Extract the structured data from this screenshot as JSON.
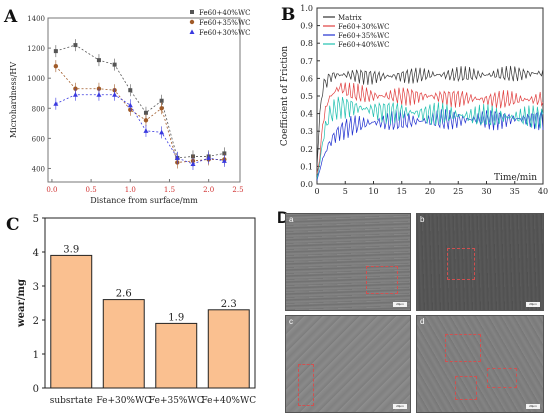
{
  "panels": {
    "A": "A",
    "B": "B",
    "C": "C",
    "D": "D"
  },
  "charts": [
    {
      "id": "A",
      "type": "line",
      "ylabel": "Microhardness/HV",
      "xlabel": "Distance from surface/mm",
      "xlim": [
        -0.05,
        2.4
      ],
      "ylim": [
        310,
        1400
      ],
      "xticks": [
        "0.0",
        "0.5",
        "1.0",
        "1.5",
        "2.0",
        "2.5"
      ],
      "xtick_values": [
        0,
        0.5,
        1.0,
        1.5,
        2.0,
        2.5
      ],
      "yticks": [
        "400",
        "600",
        "800",
        "1000",
        "1200",
        "1400"
      ],
      "ytick_values": [
        400,
        600,
        800,
        1000,
        1200,
        1400
      ],
      "grid": false,
      "legend_position": "top-right",
      "series": [
        {
          "name": "Fe60+40%WC",
          "color": "#555555",
          "marker": "square",
          "x": [
            0.05,
            0.3,
            0.6,
            0.8,
            1.0,
            1.2,
            1.4,
            1.6,
            1.8,
            2.0,
            2.2
          ],
          "y": [
            1180,
            1220,
            1120,
            1090,
            920,
            770,
            850,
            470,
            480,
            480,
            500
          ]
        },
        {
          "name": "Fe60+35%WC",
          "color": "#a05a28",
          "marker": "circle",
          "x": [
            0.05,
            0.3,
            0.6,
            0.8,
            1.0,
            1.2,
            1.4,
            1.6,
            1.8,
            2.0,
            2.2
          ],
          "y": [
            1080,
            930,
            930,
            920,
            790,
            720,
            800,
            440,
            450,
            460,
            460
          ]
        },
        {
          "name": "Fe60+30%WC",
          "color": "#3a3ae0",
          "marker": "triangle",
          "x": [
            0.05,
            0.3,
            0.6,
            0.8,
            1.0,
            1.2,
            1.4,
            1.6,
            1.8,
            2.0,
            2.2
          ],
          "y": [
            830,
            890,
            890,
            890,
            820,
            650,
            640,
            470,
            430,
            470,
            450
          ]
        }
      ]
    },
    {
      "id": "B",
      "type": "line",
      "ylabel": "Coefficient of Friction",
      "xlabel": "Time/min",
      "xlim": [
        0,
        40
      ],
      "ylim": [
        0,
        1.0
      ],
      "xticks": [
        "0",
        "5",
        "10",
        "15",
        "20",
        "25",
        "30",
        "35",
        "40"
      ],
      "xtick_values": [
        0,
        5,
        10,
        15,
        20,
        25,
        30,
        35,
        40
      ],
      "yticks": [
        "0.0",
        "0.1",
        "0.2",
        "0.3",
        "0.4",
        "0.5",
        "0.6",
        "0.7",
        "0.8",
        "0.9",
        "1.0"
      ],
      "ytick_values": [
        0,
        0.1,
        0.2,
        0.3,
        0.4,
        0.5,
        0.6,
        0.7,
        0.8,
        0.9,
        1.0
      ],
      "grid": false,
      "legend_position": "top-left",
      "series": [
        {
          "name": "Matrix",
          "color": "#333333",
          "x": [
            0,
            0.5,
            1,
            2,
            3,
            4,
            6,
            10,
            20,
            30,
            40
          ],
          "y": [
            0.1,
            0.4,
            0.55,
            0.6,
            0.62,
            0.62,
            0.62,
            0.61,
            0.62,
            0.62,
            0.63
          ]
        },
        {
          "name": "Fe60+30%WC",
          "color": "#e04040",
          "x": [
            0,
            0.5,
            1,
            2,
            3,
            4,
            6,
            10,
            20,
            30,
            40
          ],
          "y": [
            0.05,
            0.15,
            0.35,
            0.48,
            0.52,
            0.55,
            0.52,
            0.5,
            0.5,
            0.48,
            0.48
          ]
        },
        {
          "name": "Fe60+35%WC",
          "color": "#2030d0",
          "x": [
            0,
            0.5,
            1,
            2,
            3,
            4,
            6,
            10,
            20,
            30,
            40
          ],
          "y": [
            0.02,
            0.08,
            0.14,
            0.22,
            0.27,
            0.3,
            0.33,
            0.35,
            0.36,
            0.37,
            0.37
          ]
        },
        {
          "name": "Fe60+40%WC",
          "color": "#20c0b0",
          "x": [
            0,
            0.5,
            1,
            2,
            3,
            4,
            6,
            10,
            20,
            30,
            40
          ],
          "y": [
            0.03,
            0.12,
            0.25,
            0.38,
            0.42,
            0.44,
            0.44,
            0.42,
            0.4,
            0.38,
            0.38
          ]
        }
      ]
    },
    {
      "id": "C",
      "type": "bar",
      "ylabel": "wear/mg",
      "ylim": [
        0,
        5
      ],
      "yticks": [
        "0",
        "1",
        "2",
        "3",
        "4",
        "5"
      ],
      "ytick_values": [
        0,
        1,
        2,
        3,
        4,
        5
      ],
      "categories": [
        "subsrtate",
        "Fe+30%WC",
        "Fe+35%WC",
        "Fe+40%WC"
      ],
      "values": [
        3.9,
        2.6,
        1.9,
        2.3
      ],
      "value_labels": [
        "3.9",
        "2.6",
        "1.9",
        "2.3"
      ],
      "bar_color": "#fac090",
      "grid": false
    }
  ],
  "micrographs": [
    {
      "label": "a",
      "scale": "20μm"
    },
    {
      "label": "b",
      "scale": "20μm"
    },
    {
      "label": "c",
      "scale": "20μm"
    },
    {
      "label": "d",
      "scale": "20μm"
    }
  ]
}
